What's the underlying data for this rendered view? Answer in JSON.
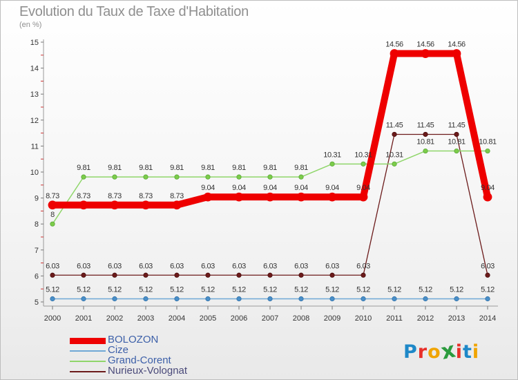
{
  "title": "Evolution du Taux de Taxe d'Habitation",
  "unit_note": "(en %)",
  "logo": {
    "text": "Proxiti",
    "colors": [
      "#1e88c8",
      "#e8302a",
      "#f0a400",
      "#2b9b3e",
      "#e8302a",
      "#1e88c8",
      "#f0a400"
    ]
  },
  "chart_data": {
    "type": "line",
    "title": "Evolution du Taux de Taxe d'Habitation",
    "ylabel": "(en %)",
    "xlabel": "",
    "x": [
      "2000",
      "2001",
      "2002",
      "2003",
      "2004",
      "2005",
      "2006",
      "2007",
      "2008",
      "2009",
      "2010",
      "2011",
      "2012",
      "2013",
      "2014"
    ],
    "ylim": [
      5,
      15
    ],
    "yticks": [
      "5",
      "6",
      "7",
      "8",
      "9",
      "10",
      "11",
      "12",
      "13",
      "14",
      "15"
    ],
    "legend_position": "bottom-left",
    "series": [
      {
        "name": "Nurieux-Volognat",
        "color": "#6b1a1a",
        "values": [
          6.03,
          6.03,
          6.03,
          6.03,
          6.03,
          6.03,
          6.03,
          6.03,
          6.03,
          6.03,
          6.03,
          11.45,
          11.45,
          11.45,
          6.03
        ],
        "labels": [
          "6.03",
          "6.03",
          "6.03",
          "6.03",
          "6.03",
          "6.03",
          "6.03",
          "6.03",
          "6.03",
          "6.03",
          "6.03",
          "11.45",
          "11.45",
          "11.45",
          "6.03"
        ]
      },
      {
        "name": "Grand-Corent",
        "color": "#8fd66a",
        "values": [
          8,
          9.81,
          9.81,
          9.81,
          9.81,
          9.81,
          9.81,
          9.81,
          9.81,
          10.31,
          10.31,
          10.31,
          10.81,
          10.81,
          10.81
        ],
        "labels": [
          "8",
          "9.81",
          "9.81",
          "9.81",
          "9.81",
          "9.81",
          "9.81",
          "9.81",
          "9.81",
          "10.31",
          "10.31",
          "10.31",
          "10.81",
          "10.81",
          "10.81"
        ]
      },
      {
        "name": "Cize",
        "color": "#6fa8d6",
        "values": [
          5.12,
          5.12,
          5.12,
          5.12,
          5.12,
          5.12,
          5.12,
          5.12,
          5.12,
          5.12,
          5.12,
          5.12,
          5.12,
          5.12,
          5.12
        ],
        "labels": [
          "5.12",
          "5.12",
          "5.12",
          "5.12",
          "5.12",
          "5.12",
          "5.12",
          "5.12",
          "5.12",
          "5.12",
          "5.12",
          "5.12",
          "5.12",
          "5.12",
          "5.12"
        ]
      },
      {
        "name": "BOLOZON",
        "color": "#ee0000",
        "values": [
          8.73,
          8.73,
          8.73,
          8.73,
          8.73,
          9.04,
          9.04,
          9.04,
          9.04,
          9.04,
          9.04,
          14.56,
          14.56,
          14.56,
          9.04
        ],
        "labels": [
          "8.73",
          "8.73",
          "8.73",
          "8.73",
          "8.73",
          "9.04",
          "9.04",
          "9.04",
          "9.04",
          "9.04",
          "9.04",
          "14.56",
          "14.56",
          "14.56",
          "9.04"
        ]
      }
    ],
    "legend_order": [
      "BOLOZON",
      "Cize",
      "Grand-Corent",
      "Nurieux-Volognat"
    ]
  }
}
